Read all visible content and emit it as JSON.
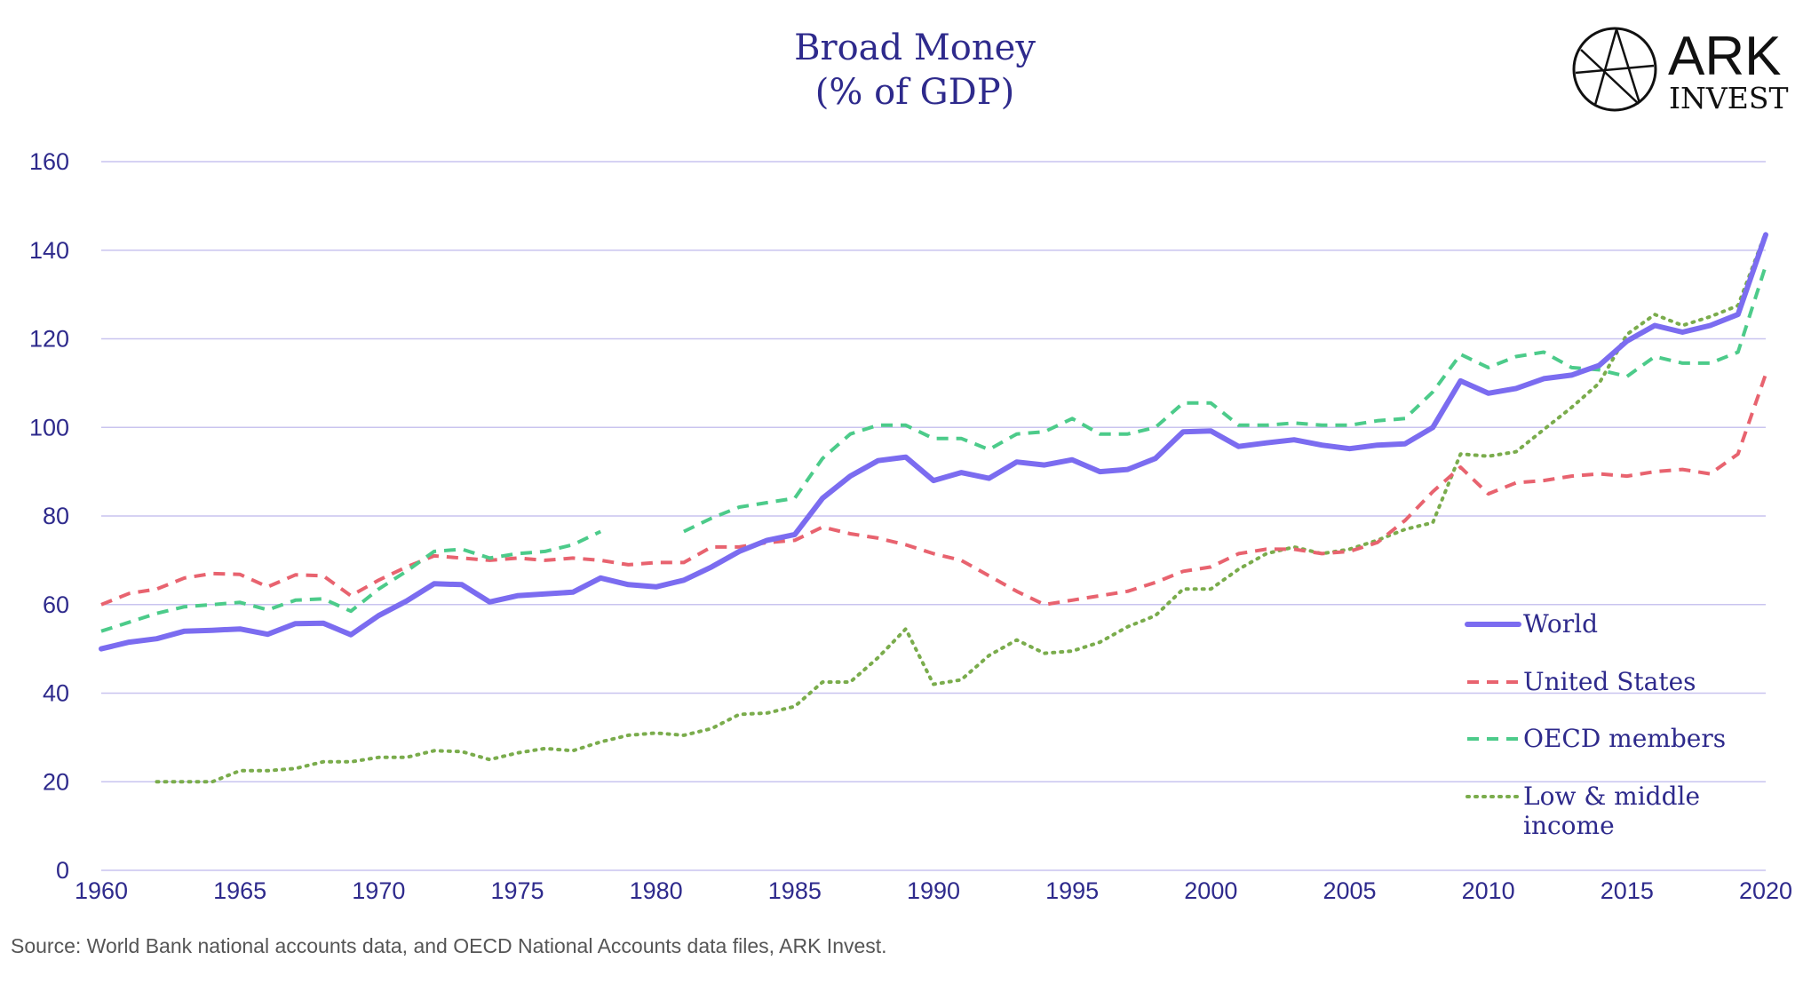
{
  "chart_data": {
    "type": "line",
    "title": [
      "Broad Money",
      "(% of GDP)"
    ],
    "xlabel": "",
    "ylabel": "",
    "xlim": [
      1960,
      2020
    ],
    "ylim": [
      0,
      160
    ],
    "xticks": [
      1960,
      1965,
      1970,
      1975,
      1980,
      1985,
      1990,
      1995,
      2000,
      2005,
      2010,
      2015,
      2020
    ],
    "yticks": [
      0,
      20,
      40,
      60,
      80,
      100,
      120,
      140,
      160
    ],
    "grid": "horizontal",
    "legend_position": "lower-right",
    "series": [
      {
        "name": "World",
        "style": "solid",
        "color": "#7b6cf0",
        "x": [
          1960,
          1961,
          1962,
          1963,
          1964,
          1965,
          1966,
          1967,
          1968,
          1969,
          1970,
          1971,
          1972,
          1973,
          1974,
          1975,
          1976,
          1977,
          1978,
          1979,
          1980,
          1981,
          1982,
          1983,
          1984,
          1985,
          1986,
          1987,
          1988,
          1989,
          1990,
          1991,
          1992,
          1993,
          1994,
          1995,
          1996,
          1997,
          1998,
          1999,
          2000,
          2001,
          2002,
          2003,
          2004,
          2005,
          2006,
          2007,
          2008,
          2009,
          2010,
          2011,
          2012,
          2013,
          2014,
          2015,
          2016,
          2017,
          2018,
          2019,
          2020
        ],
        "y": [
          50,
          51.5,
          52.3,
          54,
          54.2,
          54.5,
          53.3,
          55.7,
          55.8,
          53.2,
          57.5,
          60.8,
          64.7,
          64.5,
          60.6,
          62,
          62.4,
          62.8,
          66,
          64.5,
          64,
          65.5,
          68.5,
          72,
          74.5,
          75.8,
          84,
          89,
          92.5,
          93.3,
          88,
          89.8,
          88.5,
          92.2,
          91.5,
          92.7,
          90,
          90.5,
          93,
          99,
          99.2,
          95.7,
          96.5,
          97.2,
          96,
          95.2,
          96,
          96.3,
          100,
          110.5,
          107.7,
          108.8,
          111,
          111.8,
          114,
          119.5,
          123,
          121.5,
          123,
          125.5,
          143.5
        ]
      },
      {
        "name": "United States",
        "style": "dashed",
        "color": "#e8636f",
        "x": [
          1960,
          1961,
          1962,
          1963,
          1964,
          1965,
          1966,
          1967,
          1968,
          1969,
          1970,
          1971,
          1972,
          1973,
          1974,
          1975,
          1976,
          1977,
          1978,
          1979,
          1980,
          1981,
          1982,
          1983,
          1984,
          1985,
          1986,
          1987,
          1988,
          1989,
          1990,
          1991,
          1992,
          1993,
          1994,
          1995,
          1996,
          1997,
          1998,
          1999,
          2000,
          2001,
          2002,
          2003,
          2004,
          2005,
          2006,
          2007,
          2008,
          2009,
          2010,
          2011,
          2012,
          2013,
          2014,
          2015,
          2016,
          2017,
          2018,
          2019,
          2020
        ],
        "y": [
          60,
          62.5,
          63.5,
          66,
          67,
          66.8,
          64,
          66.7,
          66.5,
          62,
          65.5,
          68.5,
          71,
          70.5,
          70,
          70.5,
          70,
          70.5,
          70,
          69,
          69.5,
          69.5,
          73,
          73,
          74,
          74.5,
          77.5,
          76,
          75,
          73.5,
          71.5,
          70,
          66.5,
          63,
          60,
          61,
          62,
          63,
          65,
          67.5,
          68.5,
          71.5,
          72.5,
          72.5,
          71.5,
          72,
          74,
          79,
          85.5,
          91,
          85,
          87.5,
          88,
          89,
          89.5,
          89,
          90,
          90.5,
          89.5,
          94,
          112
        ]
      },
      {
        "name": "OECD members",
        "style": "dashed",
        "color": "#4ccb8a",
        "x": [
          1960,
          1961,
          1962,
          1963,
          1964,
          1965,
          1966,
          1967,
          1968,
          1969,
          1970,
          1971,
          1972,
          1973,
          1974,
          1975,
          1976,
          1977,
          1978,
          null,
          1981,
          1982,
          1983,
          1984,
          1985,
          1986,
          1987,
          1988,
          1989,
          1990,
          1991,
          1992,
          1993,
          1994,
          1995,
          1996,
          1997,
          1998,
          1999,
          2000,
          2001,
          2002,
          2003,
          2004,
          2005,
          2006,
          2007,
          2008,
          2009,
          2010,
          2011,
          2012,
          2013,
          2014,
          2015,
          2016,
          2017,
          2018,
          2019,
          2020
        ],
        "y": [
          54,
          56,
          58,
          59.5,
          60,
          60.5,
          58.8,
          61,
          61.3,
          58.5,
          63.5,
          67.5,
          72,
          72.5,
          70.5,
          71.5,
          72,
          73.5,
          76.5,
          null,
          76.5,
          79.5,
          82,
          83,
          84,
          93,
          98.5,
          100.5,
          100.5,
          97.5,
          97.5,
          95,
          98.5,
          99,
          102,
          98.5,
          98.5,
          100,
          105.5,
          105.5,
          100.5,
          100.5,
          101,
          100.5,
          100.5,
          101.5,
          102,
          108,
          116.5,
          113.5,
          116,
          117,
          113.5,
          113,
          111.5,
          116,
          114.5,
          114.5,
          117,
          136.5
        ]
      },
      {
        "name": "Low & middle income",
        "style": "dotted",
        "color": "#7aac4c",
        "x": [
          1962,
          1963,
          1964,
          1965,
          1966,
          1967,
          1968,
          1969,
          1970,
          1971,
          1972,
          1973,
          1974,
          1975,
          1976,
          1977,
          1978,
          1979,
          1980,
          1981,
          1982,
          1983,
          1984,
          1985,
          1986,
          1987,
          1988,
          1989,
          1990,
          1991,
          1992,
          1993,
          1994,
          1995,
          1996,
          1997,
          1998,
          1999,
          2000,
          2001,
          2002,
          2003,
          2004,
          2005,
          2006,
          2007,
          2008,
          2009,
          2010,
          2011,
          2012,
          2013,
          2014,
          2015,
          2016,
          2017,
          2018,
          2019,
          2020
        ],
        "y": [
          20,
          20,
          20,
          22.5,
          22.5,
          23,
          24.5,
          24.5,
          25.5,
          25.5,
          27,
          26.8,
          25,
          26.5,
          27.5,
          27,
          29,
          30.5,
          31,
          30.5,
          32,
          35.2,
          35.5,
          37,
          42.5,
          42.5,
          48,
          54.5,
          42,
          43,
          48.5,
          52,
          49,
          49.5,
          51.5,
          55,
          57.5,
          63.5,
          63.5,
          68,
          71.5,
          73,
          71.5,
          72.5,
          74.5,
          77,
          78.5,
          94,
          93.5,
          94.5,
          99.5,
          104.5,
          110,
          121,
          125.5,
          123,
          125,
          127.5,
          144
        ]
      }
    ]
  },
  "legend_lines": [
    [
      "World"
    ],
    [
      "United States"
    ],
    [
      "OECD members"
    ],
    [
      "Low & middle",
      "income"
    ]
  ],
  "logo": {
    "name": "ARK",
    "subtitle": "INVEST"
  },
  "source": "Source: World Bank national accounts data, and OECD National Accounts data files, ARK Invest."
}
